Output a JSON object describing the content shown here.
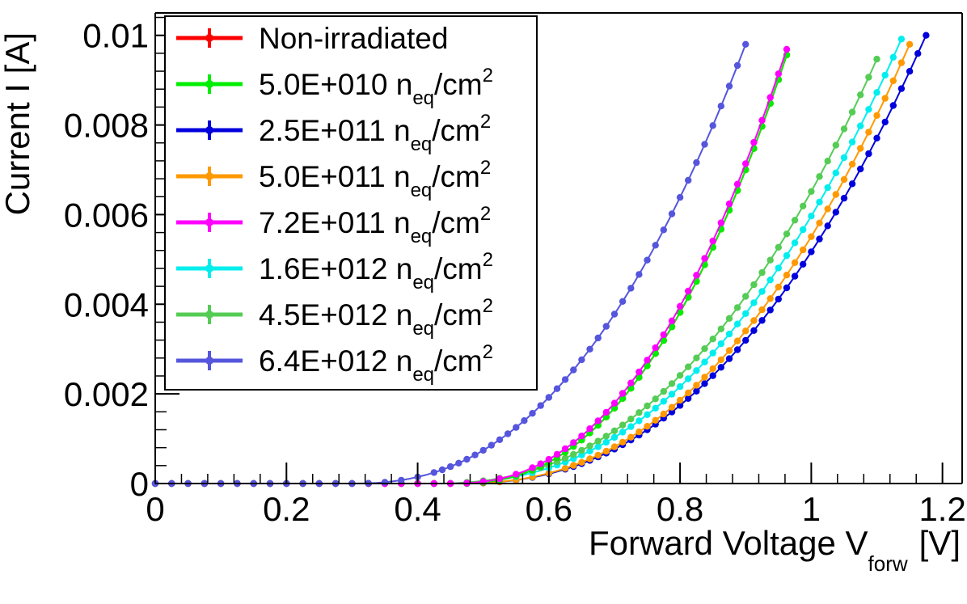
{
  "chart_data": {
    "type": "scatter",
    "xlabel": "Forward Voltage V",
    "xlabel_subscript": "forw",
    "xlabel_unit": "[V]",
    "ylabel": "Current I [A]",
    "xlim": [
      0,
      1.23
    ],
    "ylim": [
      0,
      0.0105
    ],
    "x_ticks": [
      0,
      0.2,
      0.4,
      0.6,
      0.8,
      1,
      1.2
    ],
    "x_tick_labels": [
      "0",
      "0.2",
      "0.4",
      "0.6",
      "0.8",
      "1",
      "1.2"
    ],
    "y_ticks": [
      0,
      0.002,
      0.004,
      0.006,
      0.008,
      0.01
    ],
    "y_tick_labels": [
      "0",
      "0.002",
      "0.004",
      "0.006",
      "0.008",
      "0.01"
    ],
    "grid": false,
    "legend_position": "top-left",
    "fluence_unit": "n",
    "fluence_unit_subscript": "eq",
    "fluence_unit_tail": "/cm",
    "fluence_unit_superscript": "2",
    "series": [
      {
        "name": "Non-irradiated",
        "fluence": "",
        "color": "#ff0000",
        "onset": 0.46,
        "vmax": 0.97,
        "imax": 0.0099
      },
      {
        "name": "5.0E+010",
        "fluence": "5.0E+010",
        "color": "#00ee00",
        "onset": 0.46,
        "vmax": 0.97,
        "imax": 0.0099
      },
      {
        "name": "2.5E+011",
        "fluence": "2.5E+011",
        "color": "#0000dd",
        "onset": 0.46,
        "vmax": 1.175,
        "imax": 0.01
      },
      {
        "name": "5.0E+011",
        "fluence": "5.0E+011",
        "color": "#ff9900",
        "onset": 0.46,
        "vmax": 1.15,
        "imax": 0.0098
      },
      {
        "name": "7.2E+011",
        "fluence": "7.2E+011",
        "color": "#ff00ff",
        "onset": 0.45,
        "vmax": 0.965,
        "imax": 0.0098
      },
      {
        "name": "1.6E+012",
        "fluence": "1.6E+012",
        "color": "#00eeee",
        "onset": 0.43,
        "vmax": 1.14,
        "imax": 0.01
      },
      {
        "name": "4.5E+012",
        "fluence": "4.5E+012",
        "color": "#55cc55",
        "onset": 0.42,
        "vmax": 1.11,
        "imax": 0.0098
      },
      {
        "name": "6.4E+012",
        "fluence": "6.4E+012",
        "color": "#5555dd",
        "onset": 0.3,
        "vmax": 0.9,
        "imax": 0.0098
      }
    ]
  }
}
